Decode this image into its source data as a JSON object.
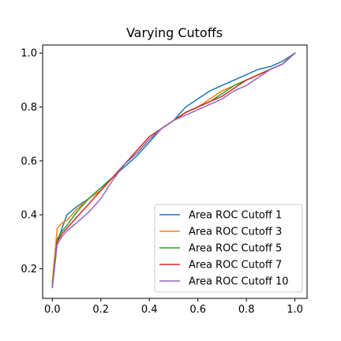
{
  "chart_data": {
    "type": "line",
    "title": "Varying Cutoffs",
    "xlabel": "",
    "ylabel": "",
    "xlim": [
      -0.04,
      1.05
    ],
    "ylim": [
      0.09,
      1.03
    ],
    "xticks": [
      0.0,
      0.2,
      0.4,
      0.6,
      0.8,
      1.0
    ],
    "xtick_labels": [
      "0.0",
      "0.2",
      "0.4",
      "0.6",
      "0.8",
      "1.0"
    ],
    "yticks": [
      0.2,
      0.4,
      0.6,
      0.8,
      1.0
    ],
    "ytick_labels": [
      "0.2",
      "0.4",
      "0.6",
      "0.8",
      "1.0"
    ],
    "grid": false,
    "legend_position": "lower-right",
    "series": [
      {
        "name": "Area ROC Cutoff 1",
        "color": "#1f77b4",
        "x": [
          0.0,
          0.02,
          0.04,
          0.06,
          0.1,
          0.15,
          0.2,
          0.25,
          0.3,
          0.35,
          0.4,
          0.45,
          0.5,
          0.55,
          0.6,
          0.65,
          0.7,
          0.75,
          0.8,
          0.85,
          0.9,
          0.95,
          1.0
        ],
        "y": [
          0.14,
          0.3,
          0.35,
          0.4,
          0.43,
          0.46,
          0.5,
          0.54,
          0.58,
          0.62,
          0.67,
          0.72,
          0.75,
          0.8,
          0.83,
          0.86,
          0.88,
          0.9,
          0.92,
          0.94,
          0.95,
          0.97,
          1.0
        ]
      },
      {
        "name": "Area ROC Cutoff 3",
        "color": "#ff7f0e",
        "x": [
          0.0,
          0.02,
          0.04,
          0.06,
          0.1,
          0.15,
          0.2,
          0.25,
          0.3,
          0.35,
          0.4,
          0.45,
          0.5,
          0.55,
          0.6,
          0.65,
          0.7,
          0.75,
          0.8,
          0.85,
          0.9,
          0.95,
          1.0
        ],
        "y": [
          0.15,
          0.35,
          0.37,
          0.38,
          0.42,
          0.46,
          0.49,
          0.54,
          0.59,
          0.63,
          0.68,
          0.72,
          0.75,
          0.78,
          0.8,
          0.83,
          0.86,
          0.88,
          0.9,
          0.92,
          0.94,
          0.96,
          1.0
        ]
      },
      {
        "name": "Area ROC Cutoff 5",
        "color": "#2ca02c",
        "x": [
          0.0,
          0.02,
          0.04,
          0.06,
          0.1,
          0.15,
          0.2,
          0.25,
          0.3,
          0.35,
          0.4,
          0.45,
          0.5,
          0.55,
          0.6,
          0.65,
          0.7,
          0.75,
          0.8,
          0.85,
          0.9,
          0.95,
          1.0
        ],
        "y": [
          0.14,
          0.31,
          0.34,
          0.36,
          0.41,
          0.46,
          0.5,
          0.54,
          0.59,
          0.63,
          0.68,
          0.72,
          0.75,
          0.78,
          0.8,
          0.82,
          0.85,
          0.88,
          0.9,
          0.92,
          0.94,
          0.96,
          1.0
        ]
      },
      {
        "name": "Area ROC Cutoff 7",
        "color": "#d62728",
        "x": [
          0.0,
          0.02,
          0.04,
          0.06,
          0.1,
          0.15,
          0.2,
          0.25,
          0.3,
          0.35,
          0.4,
          0.45,
          0.5,
          0.55,
          0.6,
          0.65,
          0.7,
          0.75,
          0.8,
          0.85,
          0.9,
          0.95,
          1.0
        ],
        "y": [
          0.13,
          0.3,
          0.33,
          0.35,
          0.39,
          0.44,
          0.49,
          0.54,
          0.59,
          0.64,
          0.69,
          0.72,
          0.75,
          0.78,
          0.8,
          0.82,
          0.84,
          0.87,
          0.9,
          0.92,
          0.94,
          0.96,
          1.0
        ]
      },
      {
        "name": "Area ROC Cutoff 10",
        "color": "#9467bd",
        "x": [
          0.0,
          0.02,
          0.04,
          0.06,
          0.1,
          0.15,
          0.2,
          0.25,
          0.3,
          0.35,
          0.4,
          0.45,
          0.5,
          0.55,
          0.6,
          0.65,
          0.7,
          0.75,
          0.8,
          0.85,
          0.9,
          0.95,
          1.0
        ],
        "y": [
          0.13,
          0.29,
          0.32,
          0.34,
          0.37,
          0.41,
          0.46,
          0.53,
          0.59,
          0.63,
          0.68,
          0.72,
          0.75,
          0.77,
          0.79,
          0.81,
          0.83,
          0.86,
          0.88,
          0.91,
          0.94,
          0.96,
          1.0
        ]
      }
    ]
  }
}
